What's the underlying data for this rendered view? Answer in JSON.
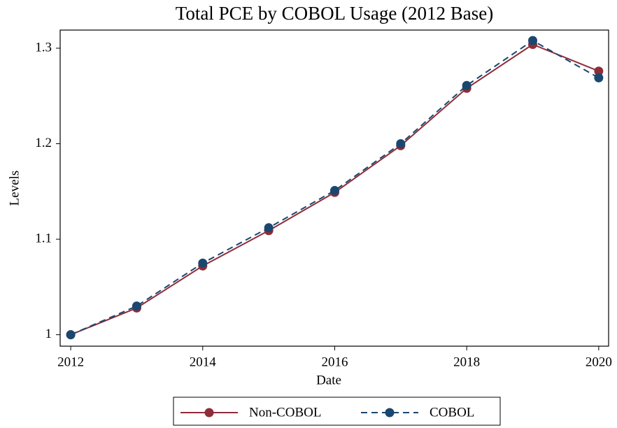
{
  "chart_data": {
    "type": "line",
    "title": "Total PCE by COBOL Usage (2012 Base)",
    "x_label": "Date",
    "y_label": "Levels",
    "x": [
      2012,
      2013,
      2014,
      2015,
      2016,
      2017,
      2018,
      2019,
      2020
    ],
    "series": [
      {
        "name": "Non-COBOL",
        "color": "#8f2d38",
        "linestyle": "solid",
        "values": [
          1.0,
          1.028,
          1.072,
          1.109,
          1.149,
          1.198,
          1.258,
          1.304,
          1.276
        ]
      },
      {
        "name": "COBOL",
        "color": "#1a476f",
        "linestyle": "dashed",
        "values": [
          1.0,
          1.03,
          1.075,
          1.112,
          1.151,
          1.2,
          1.261,
          1.308,
          1.269
        ]
      }
    ],
    "xlim": [
      2011.84,
      2020.15
    ],
    "xticks": [
      2012,
      2014,
      2016,
      2018,
      2020
    ],
    "ylim": [
      0.988,
      1.319
    ],
    "yticks": [
      1,
      1.1,
      1.2,
      1.3
    ],
    "grid": false,
    "legend_position": "bottom"
  }
}
